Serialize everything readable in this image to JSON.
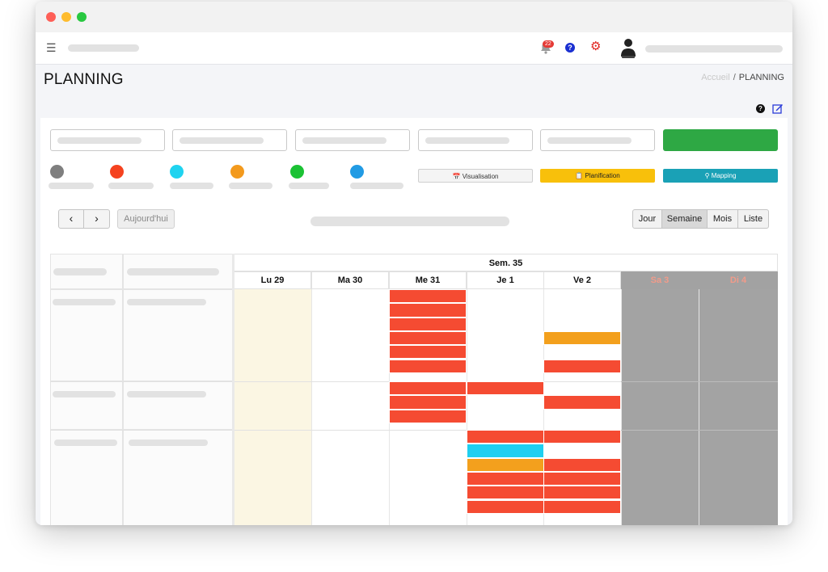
{
  "header": {
    "notifications_count": "22",
    "help_symbol": "?"
  },
  "page": {
    "title": "PLANNING",
    "breadcrumb_home": "Accueil",
    "breadcrumb_separator": "/",
    "breadcrumb_current": "PLANNING"
  },
  "legend": {
    "colors": [
      "#7f7f7f",
      "#f5421f",
      "#1fd3f0",
      "#f39a1d",
      "#1bc234",
      "#219be4"
    ]
  },
  "view_buttons": {
    "visualisation": "Visualisation",
    "planification": "Planification",
    "mapping": "Mapping"
  },
  "toolbar": {
    "prev": "‹",
    "next": "›",
    "today": "Aujourd'hui",
    "ranges": [
      "Jour",
      "Semaine",
      "Mois",
      "Liste"
    ],
    "active_range": "Semaine"
  },
  "calendar": {
    "week_label": "Sem. 35",
    "days": [
      {
        "label": "Lu 29",
        "weekend": false,
        "today": true
      },
      {
        "label": "Ma 30",
        "weekend": false,
        "today": false
      },
      {
        "label": "Me 31",
        "weekend": false,
        "today": false
      },
      {
        "label": "Je 1",
        "weekend": false,
        "today": false
      },
      {
        "label": "Ve 2",
        "weekend": false,
        "today": false
      },
      {
        "label": "Sa 3",
        "weekend": true,
        "today": false
      },
      {
        "label": "Di 4",
        "weekend": true,
        "today": false
      }
    ],
    "event_colors": {
      "red": "#f54b32",
      "orange": "#f3a01d",
      "cyan": "#1fcff0"
    },
    "events": [
      {
        "day": 2,
        "row": 0,
        "slot": 0,
        "color": "red"
      },
      {
        "day": 2,
        "row": 0,
        "slot": 1,
        "color": "red"
      },
      {
        "day": 2,
        "row": 0,
        "slot": 2,
        "color": "red"
      },
      {
        "day": 2,
        "row": 0,
        "slot": 3,
        "color": "red"
      },
      {
        "day": 2,
        "row": 0,
        "slot": 4,
        "color": "red"
      },
      {
        "day": 2,
        "row": 0,
        "slot": 5,
        "color": "red"
      },
      {
        "day": 4,
        "row": 0,
        "slot": 3,
        "color": "orange"
      },
      {
        "day": 4,
        "row": 0,
        "slot": 5,
        "color": "red"
      },
      {
        "day": 2,
        "row": 1,
        "slot": 0,
        "color": "red"
      },
      {
        "day": 2,
        "row": 1,
        "slot": 1,
        "color": "red"
      },
      {
        "day": 2,
        "row": 1,
        "slot": 2,
        "color": "red"
      },
      {
        "day": 3,
        "row": 1,
        "slot": 0,
        "color": "red"
      },
      {
        "day": 4,
        "row": 1,
        "slot": 1,
        "color": "red"
      },
      {
        "day": 3,
        "row": 2,
        "slot": 0,
        "color": "red"
      },
      {
        "day": 3,
        "row": 2,
        "slot": 1,
        "color": "cyan"
      },
      {
        "day": 3,
        "row": 2,
        "slot": 2,
        "color": "orange"
      },
      {
        "day": 3,
        "row": 2,
        "slot": 3,
        "color": "red"
      },
      {
        "day": 3,
        "row": 2,
        "slot": 4,
        "color": "red"
      },
      {
        "day": 3,
        "row": 2,
        "slot": 5,
        "color": "red"
      },
      {
        "day": 4,
        "row": 2,
        "slot": 0,
        "color": "red"
      },
      {
        "day": 4,
        "row": 2,
        "slot": 2,
        "color": "red"
      },
      {
        "day": 4,
        "row": 2,
        "slot": 3,
        "color": "red"
      },
      {
        "day": 4,
        "row": 2,
        "slot": 4,
        "color": "red"
      },
      {
        "day": 4,
        "row": 2,
        "slot": 5,
        "color": "red"
      }
    ]
  }
}
